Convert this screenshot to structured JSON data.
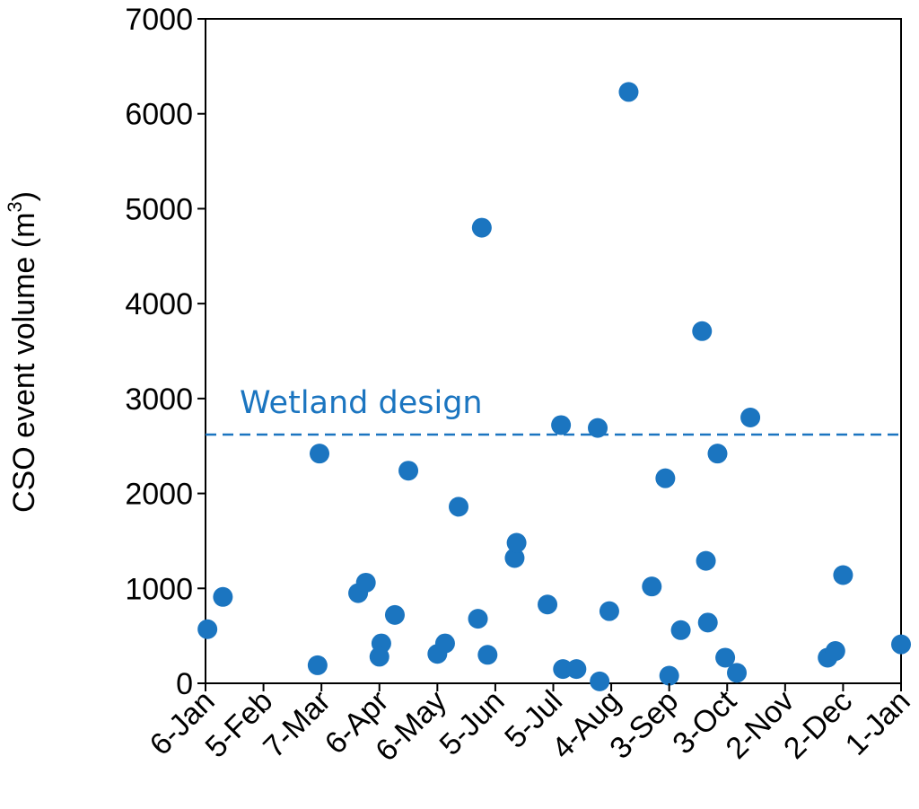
{
  "chart_data": {
    "type": "scatter",
    "title": "",
    "xlabel": "",
    "ylabel": "CSO event volume (m",
    "ylabel_superscript": "3",
    "ylabel_suffix": ")",
    "ylim": [
      0,
      7000
    ],
    "yticks": [
      "0",
      "1000",
      "2000",
      "3000",
      "4000",
      "5000",
      "6000",
      "7000"
    ],
    "xlim": [
      "6-Jan",
      "1-Jan"
    ],
    "xticks": [
      "6-Jan",
      "5-Feb",
      "7-Mar",
      "6-Apr",
      "6-May",
      "5-Jun",
      "5-Jul",
      "4-Aug",
      "3-Sep",
      "3-Oct",
      "2-Nov",
      "2-Dec",
      "1-Jan"
    ],
    "grid": false,
    "legend": "none",
    "marker_color": "#1b75c0",
    "points": [
      {
        "x": "7-Jan",
        "y": 570
      },
      {
        "x": "15-Jan",
        "y": 910
      },
      {
        "x": "6-Mar",
        "y": 2420
      },
      {
        "x": "5-Mar",
        "y": 190
      },
      {
        "x": "26-Mar",
        "y": 950
      },
      {
        "x": "30-Mar",
        "y": 1060
      },
      {
        "x": "7-Apr",
        "y": 420
      },
      {
        "x": "6-Apr",
        "y": 280
      },
      {
        "x": "14-Apr",
        "y": 720
      },
      {
        "x": "21-Apr",
        "y": 2240
      },
      {
        "x": "6-May",
        "y": 310
      },
      {
        "x": "10-May",
        "y": 420
      },
      {
        "x": "17-May",
        "y": 1860
      },
      {
        "x": "27-May",
        "y": 680
      },
      {
        "x": "29-May",
        "y": 4800
      },
      {
        "x": "1-Jun",
        "y": 300
      },
      {
        "x": "15-Jun",
        "y": 1320
      },
      {
        "x": "16-Jun",
        "y": 1480
      },
      {
        "x": "2-Jul",
        "y": 830
      },
      {
        "x": "9-Jul",
        "y": 2720
      },
      {
        "x": "10-Jul",
        "y": 150
      },
      {
        "x": "17-Jul",
        "y": 150
      },
      {
        "x": "28-Jul",
        "y": 2690
      },
      {
        "x": "29-Jul",
        "y": 20
      },
      {
        "x": "3-Aug",
        "y": 760
      },
      {
        "x": "13-Aug",
        "y": 6230
      },
      {
        "x": "25-Aug",
        "y": 1020
      },
      {
        "x": "1-Sep",
        "y": 2160
      },
      {
        "x": "3-Sep",
        "y": 80
      },
      {
        "x": "9-Sep",
        "y": 560
      },
      {
        "x": "20-Sep",
        "y": 3710
      },
      {
        "x": "22-Sep",
        "y": 1290
      },
      {
        "x": "23-Sep",
        "y": 640
      },
      {
        "x": "28-Sep",
        "y": 2420
      },
      {
        "x": "2-Oct",
        "y": 270
      },
      {
        "x": "8-Oct",
        "y": 110
      },
      {
        "x": "15-Oct",
        "y": 2800
      },
      {
        "x": "24-Nov",
        "y": 270
      },
      {
        "x": "28-Nov",
        "y": 340
      },
      {
        "x": "2-Dec",
        "y": 1140
      },
      {
        "x": "1-Jan",
        "y": 410
      }
    ],
    "reference_line": {
      "label": "Wetland design",
      "y": 2620,
      "style": "dashed",
      "color": "#1b75c0"
    }
  }
}
